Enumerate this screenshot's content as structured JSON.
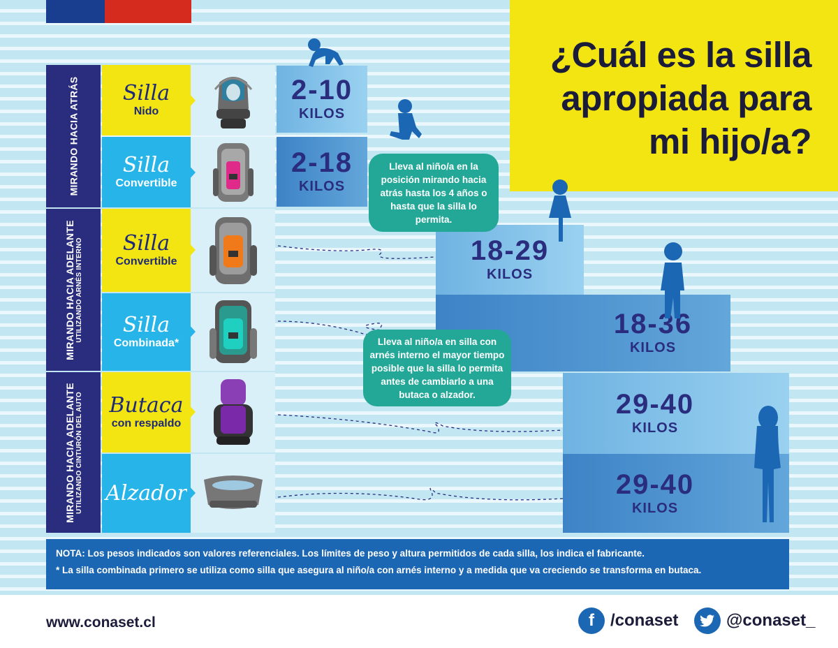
{
  "title": {
    "line1": "¿Cuál es la silla",
    "line2": "apropiada para",
    "line3": "mi hijo/a?"
  },
  "sections": [
    {
      "main": "MIRANDO HACIA ATRÁS",
      "sub": ""
    },
    {
      "main": "MIRANDO HACIA ADELANTE",
      "sub": "UTILIZANDO ARNÉS INTERNO"
    },
    {
      "main": "MIRANDO HACIA ADELANTE",
      "sub": "UTILIZANDO CINTURÓN DEL AUTO"
    }
  ],
  "seats": [
    {
      "script": "Silla",
      "sub": "Nido",
      "range": "2-10",
      "unit": "KILOS",
      "color": "#f3e511"
    },
    {
      "script": "Silla",
      "sub": "Convertible",
      "range": "2-18",
      "unit": "KILOS",
      "color": "#27b4e8"
    },
    {
      "script": "Silla",
      "sub": "Convertible",
      "range": "18-29",
      "unit": "KILOS",
      "color": "#f3e511"
    },
    {
      "script": "Silla",
      "sub": "Combinada*",
      "range": "18-36",
      "unit": "KILOS",
      "color": "#27b4e8"
    },
    {
      "script": "Butaca",
      "sub": "con respaldo",
      "range": "29-40",
      "unit": "KILOS",
      "color": "#f3e511"
    },
    {
      "script": "Alzador",
      "sub": "",
      "range": "29-40",
      "unit": "KILOS",
      "color": "#27b4e8"
    }
  ],
  "bubbles": {
    "rear": "Lleva al niño/a en la posición mirando hacia atrás hasta los 4 años o hasta que la silla lo permita.",
    "harness": "Lleva al niño/a en silla con arnés interno el mayor tiempo posible que la silla lo permita antes de cambiarlo a una butaca o alzador."
  },
  "nota": {
    "label": "NOTA:",
    "text": "Los pesos indicados son valores referenciales. Los límites de peso y altura permitidos de cada silla, los indica el fabricante.",
    "footnote": "* La silla combinada primero se utiliza como silla que asegura al niño/a con arnés interno y a medida que va creciendo se transforma en butaca."
  },
  "footer": {
    "url": "www.conaset.cl",
    "facebook": "/conaset",
    "twitter": "@conaset_"
  },
  "colors": {
    "navy": "#2a2d7e",
    "yellow": "#f3e511",
    "cyan": "#27b4e8",
    "teal": "#23a898",
    "blue": "#1c67b3",
    "red": "#d52b1e"
  }
}
